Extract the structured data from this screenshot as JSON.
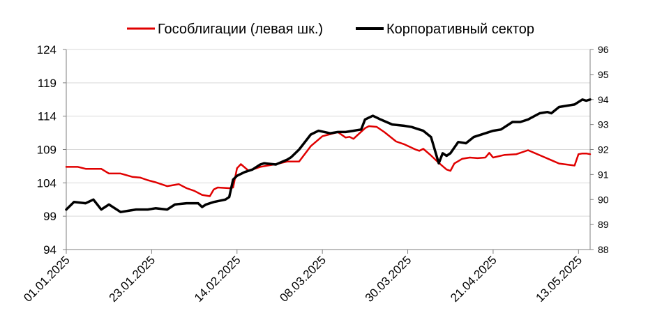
{
  "chart_data": {
    "type": "line",
    "title": "",
    "xlabel": "",
    "legend_position": "top",
    "grid": "horizontal",
    "x_ticks": [
      "01.01.2025",
      "23.01.2025",
      "14.02.2025",
      "08.03.2025",
      "30.03.2025",
      "21.04.2025",
      "13.05.2025"
    ],
    "y_left": {
      "ticks": [
        94,
        99,
        104,
        109,
        114,
        119,
        124
      ],
      "ylim": [
        94,
        124
      ]
    },
    "y_right": {
      "ticks": [
        88,
        89,
        90,
        91,
        92,
        93,
        94,
        95,
        96
      ],
      "ylim": [
        88,
        96
      ]
    },
    "series": [
      {
        "name": "Гособлигации (левая шк.)",
        "axis": "left",
        "color": "#e00000",
        "x": [
          "2025-01-01",
          "2025-01-04",
          "2025-01-06",
          "2025-01-10",
          "2025-01-12",
          "2025-01-15",
          "2025-01-18",
          "2025-01-20",
          "2025-01-22",
          "2025-01-24",
          "2025-01-27",
          "2025-01-30",
          "2025-02-01",
          "2025-02-03",
          "2025-02-05",
          "2025-02-07",
          "2025-02-08",
          "2025-02-09",
          "2025-02-12",
          "2025-02-13",
          "2025-02-14",
          "2025-02-15",
          "2025-02-17",
          "2025-02-20",
          "2025-02-24",
          "2025-02-27",
          "2025-03-02",
          "2025-03-05",
          "2025-03-08",
          "2025-03-10",
          "2025-03-12",
          "2025-03-14",
          "2025-03-15",
          "2025-03-16",
          "2025-03-19",
          "2025-03-20",
          "2025-03-22",
          "2025-03-24",
          "2025-03-27",
          "2025-03-29",
          "2025-04-01",
          "2025-04-02",
          "2025-04-03",
          "2025-04-05",
          "2025-04-07",
          "2025-04-09",
          "2025-04-10",
          "2025-04-11",
          "2025-04-13",
          "2025-04-15",
          "2025-04-17",
          "2025-04-19",
          "2025-04-20",
          "2025-04-21",
          "2025-04-24",
          "2025-04-27",
          "2025-04-30",
          "2025-05-04",
          "2025-05-06",
          "2025-05-08",
          "2025-05-12",
          "2025-05-13",
          "2025-05-14",
          "2025-05-15",
          "2025-05-16"
        ],
        "values": [
          106.4,
          106.4,
          106.1,
          106.1,
          105.4,
          105.4,
          104.9,
          104.8,
          104.4,
          104.1,
          103.5,
          103.8,
          103.2,
          102.8,
          102.2,
          102.0,
          103.0,
          103.3,
          103.2,
          103.3,
          106.2,
          106.8,
          105.8,
          106.4,
          106.8,
          107.2,
          107.2,
          109.5,
          111.0,
          111.3,
          111.6,
          110.8,
          110.9,
          110.6,
          112.2,
          112.5,
          112.4,
          111.6,
          110.2,
          109.8,
          109.0,
          108.8,
          109.1,
          108.1,
          107.0,
          106.0,
          105.8,
          106.9,
          107.6,
          107.8,
          107.7,
          107.8,
          108.5,
          107.8,
          108.2,
          108.3,
          108.9,
          107.9,
          107.4,
          106.9,
          106.6,
          108.3,
          108.4,
          108.4,
          108.3
        ]
      },
      {
        "name": "Корпоративный сектор",
        "axis": "right",
        "color": "#000000",
        "x": [
          "2025-01-01",
          "2025-01-03",
          "2025-01-06",
          "2025-01-08",
          "2025-01-10",
          "2025-01-12",
          "2025-01-15",
          "2025-01-17",
          "2025-01-19",
          "2025-01-22",
          "2025-01-24",
          "2025-01-27",
          "2025-01-29",
          "2025-01-30",
          "2025-02-01",
          "2025-02-04",
          "2025-02-05",
          "2025-02-06",
          "2025-02-08",
          "2025-02-11",
          "2025-02-12",
          "2025-02-13",
          "2025-02-14",
          "2025-02-16",
          "2025-02-18",
          "2025-02-20",
          "2025-02-21",
          "2025-02-24",
          "2025-02-27",
          "2025-02-28",
          "2025-03-02",
          "2025-03-05",
          "2025-03-07",
          "2025-03-10",
          "2025-03-12",
          "2025-03-14",
          "2025-03-16",
          "2025-03-18",
          "2025-03-19",
          "2025-03-21",
          "2025-03-23",
          "2025-03-26",
          "2025-03-29",
          "2025-03-31",
          "2025-04-02",
          "2025-04-03",
          "2025-04-05",
          "2025-04-07",
          "2025-04-08",
          "2025-04-09",
          "2025-04-10",
          "2025-04-12",
          "2025-04-14",
          "2025-04-16",
          "2025-04-19",
          "2025-04-21",
          "2025-04-23",
          "2025-04-26",
          "2025-04-28",
          "2025-04-30",
          "2025-05-03",
          "2025-05-05",
          "2025-05-06",
          "2025-05-08",
          "2025-05-12",
          "2025-05-14",
          "2025-05-15",
          "2025-05-16"
        ],
        "values": [
          89.6,
          89.9,
          89.85,
          90.0,
          89.6,
          89.8,
          89.5,
          89.55,
          89.6,
          89.6,
          89.65,
          89.6,
          89.8,
          89.82,
          89.85,
          89.85,
          89.7,
          89.8,
          89.9,
          90.0,
          90.1,
          90.8,
          90.95,
          91.1,
          91.2,
          91.4,
          91.45,
          91.4,
          91.6,
          91.7,
          92.0,
          92.6,
          92.75,
          92.65,
          92.7,
          92.7,
          92.75,
          92.8,
          93.2,
          93.35,
          93.2,
          93.0,
          92.95,
          92.9,
          92.8,
          92.75,
          92.5,
          91.45,
          91.85,
          91.75,
          91.85,
          92.3,
          92.25,
          92.5,
          92.65,
          92.75,
          92.8,
          93.1,
          93.1,
          93.2,
          93.45,
          93.5,
          93.45,
          93.7,
          93.8,
          94.0,
          93.95,
          94.0
        ]
      }
    ]
  }
}
